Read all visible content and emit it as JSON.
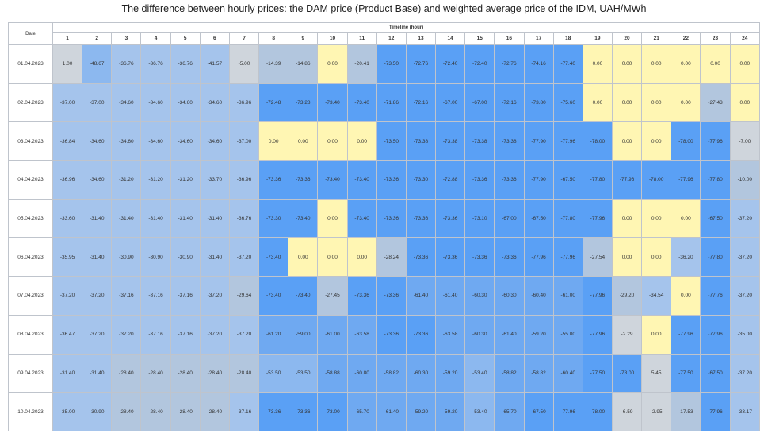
{
  "title": "The difference between hourly prices: the DAM price (Product Base) and weighted average price of the IDM, UAH/MWh",
  "chart_data": {
    "type": "heatmap",
    "title": "The difference between hourly prices: the DAM price (Product Base) and weighted average price of the IDM, UAH/MWh",
    "row_header": "Date",
    "column_group_header": "Timeline (hour)",
    "columns": [
      "1",
      "2",
      "3",
      "4",
      "5",
      "6",
      "7",
      "8",
      "9",
      "10",
      "11",
      "12",
      "13",
      "14",
      "15",
      "16",
      "17",
      "18",
      "19",
      "20",
      "21",
      "22",
      "23",
      "24"
    ],
    "rows": [
      {
        "date": "01.04.2023",
        "values": [
          "1.00",
          "-48.67",
          "-36.76",
          "-36.76",
          "-36.76",
          "-41.57",
          "-5.00",
          "-14.39",
          "-14.86",
          "0.00",
          "-20.41",
          "-73.50",
          "-72.76",
          "-72.40",
          "-72.40",
          "-72.76",
          "-74.16",
          "-77.40",
          "0.00",
          "0.00",
          "0.00",
          "0.00",
          "0.00",
          "0.00"
        ]
      },
      {
        "date": "02.04.2023",
        "values": [
          "-37.00",
          "-37.00",
          "-34.60",
          "-34.60",
          "-34.60",
          "-34.60",
          "-36.96",
          "-72.48",
          "-73.28",
          "-73.40",
          "-73.40",
          "-71.86",
          "-72.16",
          "-67.00",
          "-67.00",
          "-72.16",
          "-73.80",
          "-75.60",
          "0.00",
          "0.00",
          "0.00",
          "0.00",
          "-27.43",
          "0.00"
        ]
      },
      {
        "date": "03.04.2023",
        "values": [
          "-36.84",
          "-34.60",
          "-34.60",
          "-34.60",
          "-34.60",
          "-34.60",
          "-37.00",
          "0.00",
          "0.00",
          "0.00",
          "0.00",
          "-73.50",
          "-73.38",
          "-73.38",
          "-73.38",
          "-73.38",
          "-77.90",
          "-77.96",
          "-78.00",
          "0.00",
          "0.00",
          "-78.00",
          "-77.96",
          "-7.00"
        ]
      },
      {
        "date": "04.04.2023",
        "values": [
          "-36.96",
          "-34.60",
          "-31.20",
          "-31.20",
          "-31.20",
          "-33.70",
          "-36.96",
          "-73.36",
          "-73.36",
          "-73.40",
          "-73.40",
          "-73.36",
          "-73.30",
          "-72.88",
          "-73.36",
          "-73.36",
          "-77.90",
          "-67.50",
          "-77.80",
          "-77.96",
          "-78.00",
          "-77.96",
          "-77.80",
          "-10.00"
        ]
      },
      {
        "date": "05.04.2023",
        "values": [
          "-33.60",
          "-31.40",
          "-31.40",
          "-31.40",
          "-31.40",
          "-31.40",
          "-36.76",
          "-73.30",
          "-73.40",
          "0.00",
          "-73.40",
          "-73.36",
          "-73.36",
          "-73.36",
          "-73.10",
          "-67.00",
          "-67.50",
          "-77.80",
          "-77.96",
          "0.00",
          "0.00",
          "0.00",
          "-67.50",
          "-37.20"
        ]
      },
      {
        "date": "06.04.2023",
        "values": [
          "-35.95",
          "-31.40",
          "-30.90",
          "-30.90",
          "-30.90",
          "-31.40",
          "-37.20",
          "-73.40",
          "0.00",
          "0.00",
          "0.00",
          "-28.24",
          "-73.36",
          "-73.36",
          "-73.36",
          "-73.36",
          "-77.96",
          "-77.96",
          "-27.54",
          "0.00",
          "0.00",
          "-36.20",
          "-77.80",
          "-37.20"
        ]
      },
      {
        "date": "07.04.2023",
        "values": [
          "-37.20",
          "-37.20",
          "-37.16",
          "-37.16",
          "-37.16",
          "-37.20",
          "-29.64",
          "-73.40",
          "-73.40",
          "-27.45",
          "-73.36",
          "-73.36",
          "-61.40",
          "-61.40",
          "-60.30",
          "-60.30",
          "-60.40",
          "-61.00",
          "-77.96",
          "-29.20",
          "-34.54",
          "0.00",
          "-77.76",
          "-37.20"
        ]
      },
      {
        "date": "08.04.2023",
        "values": [
          "-36.47",
          "-37.20",
          "-37.20",
          "-37.16",
          "-37.16",
          "-37.20",
          "-37.20",
          "-61.20",
          "-59.00",
          "-61.00",
          "-63.58",
          "-73.36",
          "-73.36",
          "-63.58",
          "-60.30",
          "-61.40",
          "-59.20",
          "-55.00",
          "-77.96",
          "-2.29",
          "0.00",
          "-77.96",
          "-77.96",
          "-35.00"
        ]
      },
      {
        "date": "09.04.2023",
        "values": [
          "-31.40",
          "-31.40",
          "-28.40",
          "-28.40",
          "-28.40",
          "-28.40",
          "-28.40",
          "-53.50",
          "-53.50",
          "-58.88",
          "-60.80",
          "-58.82",
          "-60.30",
          "-59.20",
          "-53.40",
          "-58.82",
          "-58.82",
          "-60.40",
          "-77.50",
          "-78.00",
          "5.45",
          "-77.50",
          "-67.50",
          "-37.20"
        ]
      },
      {
        "date": "10.04.2023",
        "values": [
          "-35.00",
          "-30.90",
          "-28.40",
          "-28.40",
          "-28.40",
          "-28.40",
          "-37.16",
          "-73.36",
          "-73.36",
          "-73.00",
          "-65.70",
          "-61.40",
          "-59.20",
          "-59.20",
          "-53.40",
          "-65.70",
          "-67.50",
          "-77.96",
          "-78.00",
          "-6.59",
          "-2.95",
          "-17.53",
          "-77.96",
          "-33.17"
        ]
      }
    ],
    "color_scale": {
      "zero": "#fff6b3",
      "positive_small": "#cfd5dc",
      "light_negative": "#b2c6de",
      "mid_negative_1": "#a5c4ec",
      "mid_negative_2": "#8cb8ef",
      "strong_negative": "#6fa9f1",
      "max_negative": "#5aa0f5"
    }
  }
}
